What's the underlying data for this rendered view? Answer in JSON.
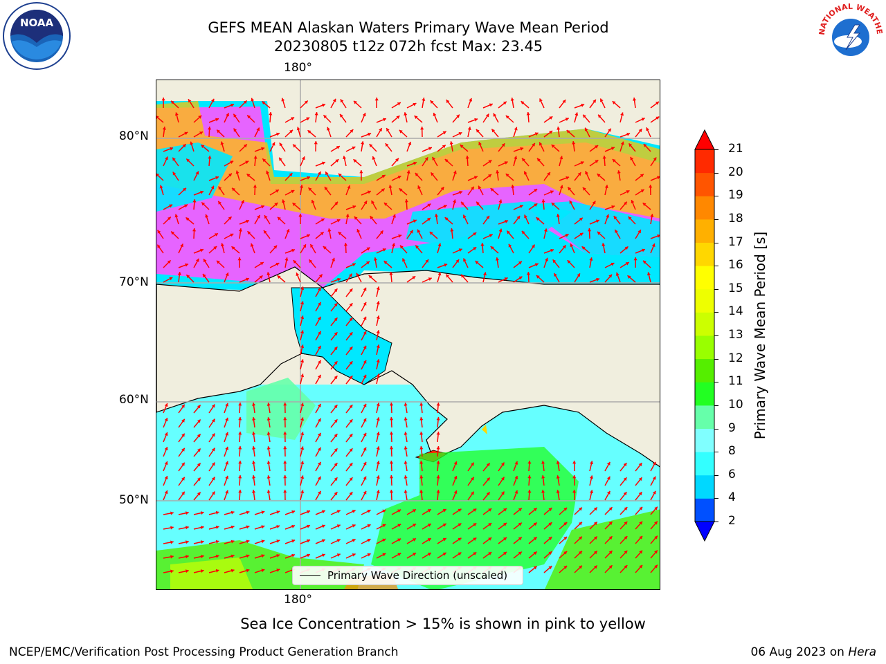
{
  "title": {
    "line1": "GEFS MEAN Alaskan Waters Primary Wave Mean Period",
    "line2": "20230805 t12z 072h fcst   Max: 23.45"
  },
  "map": {
    "lon_label_top": "180°",
    "lon_label_bottom": "180°",
    "lat_labels": [
      "80°N",
      "70°N",
      "60°N",
      "50°N"
    ],
    "legend_label": "Primary Wave Direction (unscaled)"
  },
  "colorbar": {
    "label": "Primary Wave Mean Period [s]",
    "ticks": [
      "2",
      "4",
      "6",
      "8",
      "9",
      "10",
      "11",
      "12",
      "13",
      "14",
      "15",
      "16",
      "17",
      "18",
      "19",
      "20",
      "21"
    ],
    "colors": [
      "#0050ff",
      "#00d8ff",
      "#33ffff",
      "#80ffff",
      "#66ffaa",
      "#22ff22",
      "#55ee00",
      "#99ff00",
      "#ccff00",
      "#eeff00",
      "#ffff00",
      "#ffd700",
      "#ffb000",
      "#ff8800",
      "#ff5500",
      "#ff2a00",
      "#ff0000"
    ],
    "under_color": "#0000ff",
    "over_color": "#ff0000"
  },
  "sea_ice_note": "Sea Ice Concentration > 15% is shown in pink to yellow",
  "footer": {
    "left": "NCEP/EMC/Verification Post Processing Product Generation Branch",
    "right_date": "06 Aug 2023 on ",
    "right_host": "Hera"
  },
  "logos": {
    "noaa": "NOAA",
    "nws": "NATIONAL WEATHER SERVICE"
  },
  "colors": {
    "land": "#f0eede",
    "arrow": "#ff0000",
    "sea_ice_pink": "#ff55ff",
    "sea_ice_yellow": "#ffd400",
    "grid": "#aaaaaa"
  }
}
